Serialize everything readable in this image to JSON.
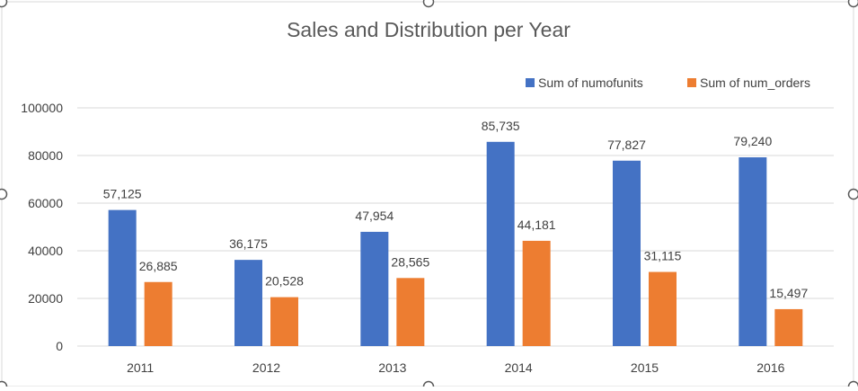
{
  "chart_data": {
    "type": "bar",
    "title": "Sales and Distribution per Year",
    "categories": [
      "2011",
      "2012",
      "2013",
      "2014",
      "2015",
      "2016"
    ],
    "series": [
      {
        "name": "Sum of numofunits",
        "color": "#4472C4",
        "values": [
          57125,
          36175,
          47954,
          85735,
          77827,
          79240
        ],
        "labels": [
          "57,125",
          "36,175",
          "47,954",
          "85,735",
          "77,827",
          "79,240"
        ]
      },
      {
        "name": "Sum of num_orders",
        "color": "#ED7D31",
        "values": [
          26885,
          20528,
          28565,
          44181,
          31115,
          15497
        ],
        "labels": [
          "26,885",
          "20,528",
          "28,565",
          "44,181",
          "31,115",
          "15,497"
        ]
      }
    ],
    "ylim": [
      0,
      100000
    ],
    "yticks": [
      0,
      20000,
      40000,
      60000,
      80000,
      100000
    ],
    "ytick_labels": [
      "0",
      "20000",
      "40000",
      "60000",
      "80000",
      "100000"
    ],
    "grid": true,
    "legend_position": "top-right",
    "xlabel": "",
    "ylabel": ""
  }
}
